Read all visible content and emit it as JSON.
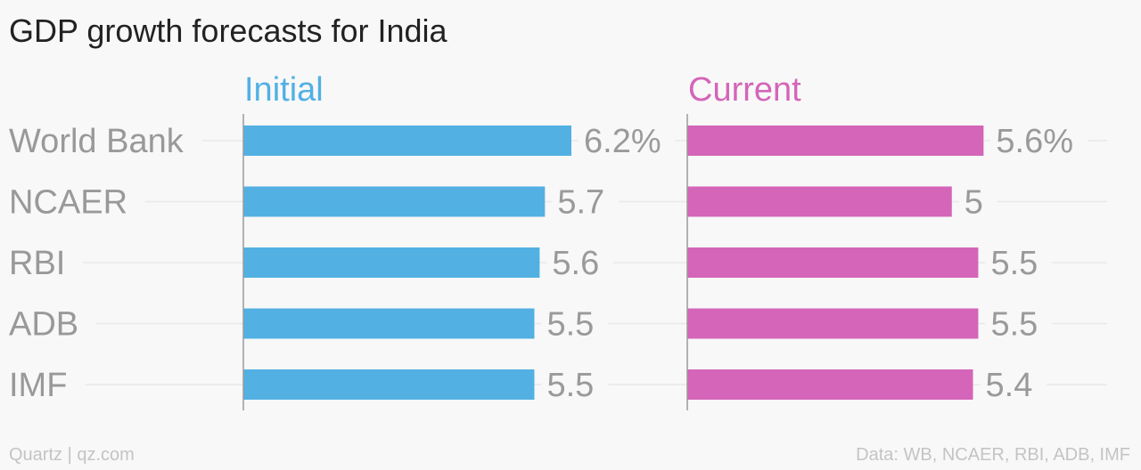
{
  "title": "GDP growth forecasts for India",
  "footer": {
    "left": "Quartz | qz.com",
    "right": "Data: WB, NCAER, RBI, ADB, IMF"
  },
  "colors": {
    "initial": "#52b0e3",
    "current": "#d465b9",
    "label": "#999999",
    "gridline": "#e8e8e8",
    "axis": "#9a9a9a"
  },
  "chart_data": {
    "type": "bar",
    "orientation": "horizontal",
    "title": "GDP growth forecasts for India",
    "categories": [
      "World Bank",
      "NCAER",
      "RBI",
      "ADB",
      "IMF"
    ],
    "series": [
      {
        "name": "Initial",
        "values": [
          6.2,
          5.7,
          5.6,
          5.5,
          5.5
        ],
        "labels": [
          "6.2%",
          "5.7",
          "5.6",
          "5.5",
          "5.5"
        ]
      },
      {
        "name": "Current",
        "values": [
          5.6,
          5,
          5.5,
          5.5,
          5.4
        ],
        "labels": [
          "5.6%",
          "5",
          "5.5",
          "5.5",
          "5.4"
        ]
      }
    ],
    "xlim": [
      0,
      6.8
    ],
    "grid": false,
    "legend": "panel titles above each panel"
  }
}
